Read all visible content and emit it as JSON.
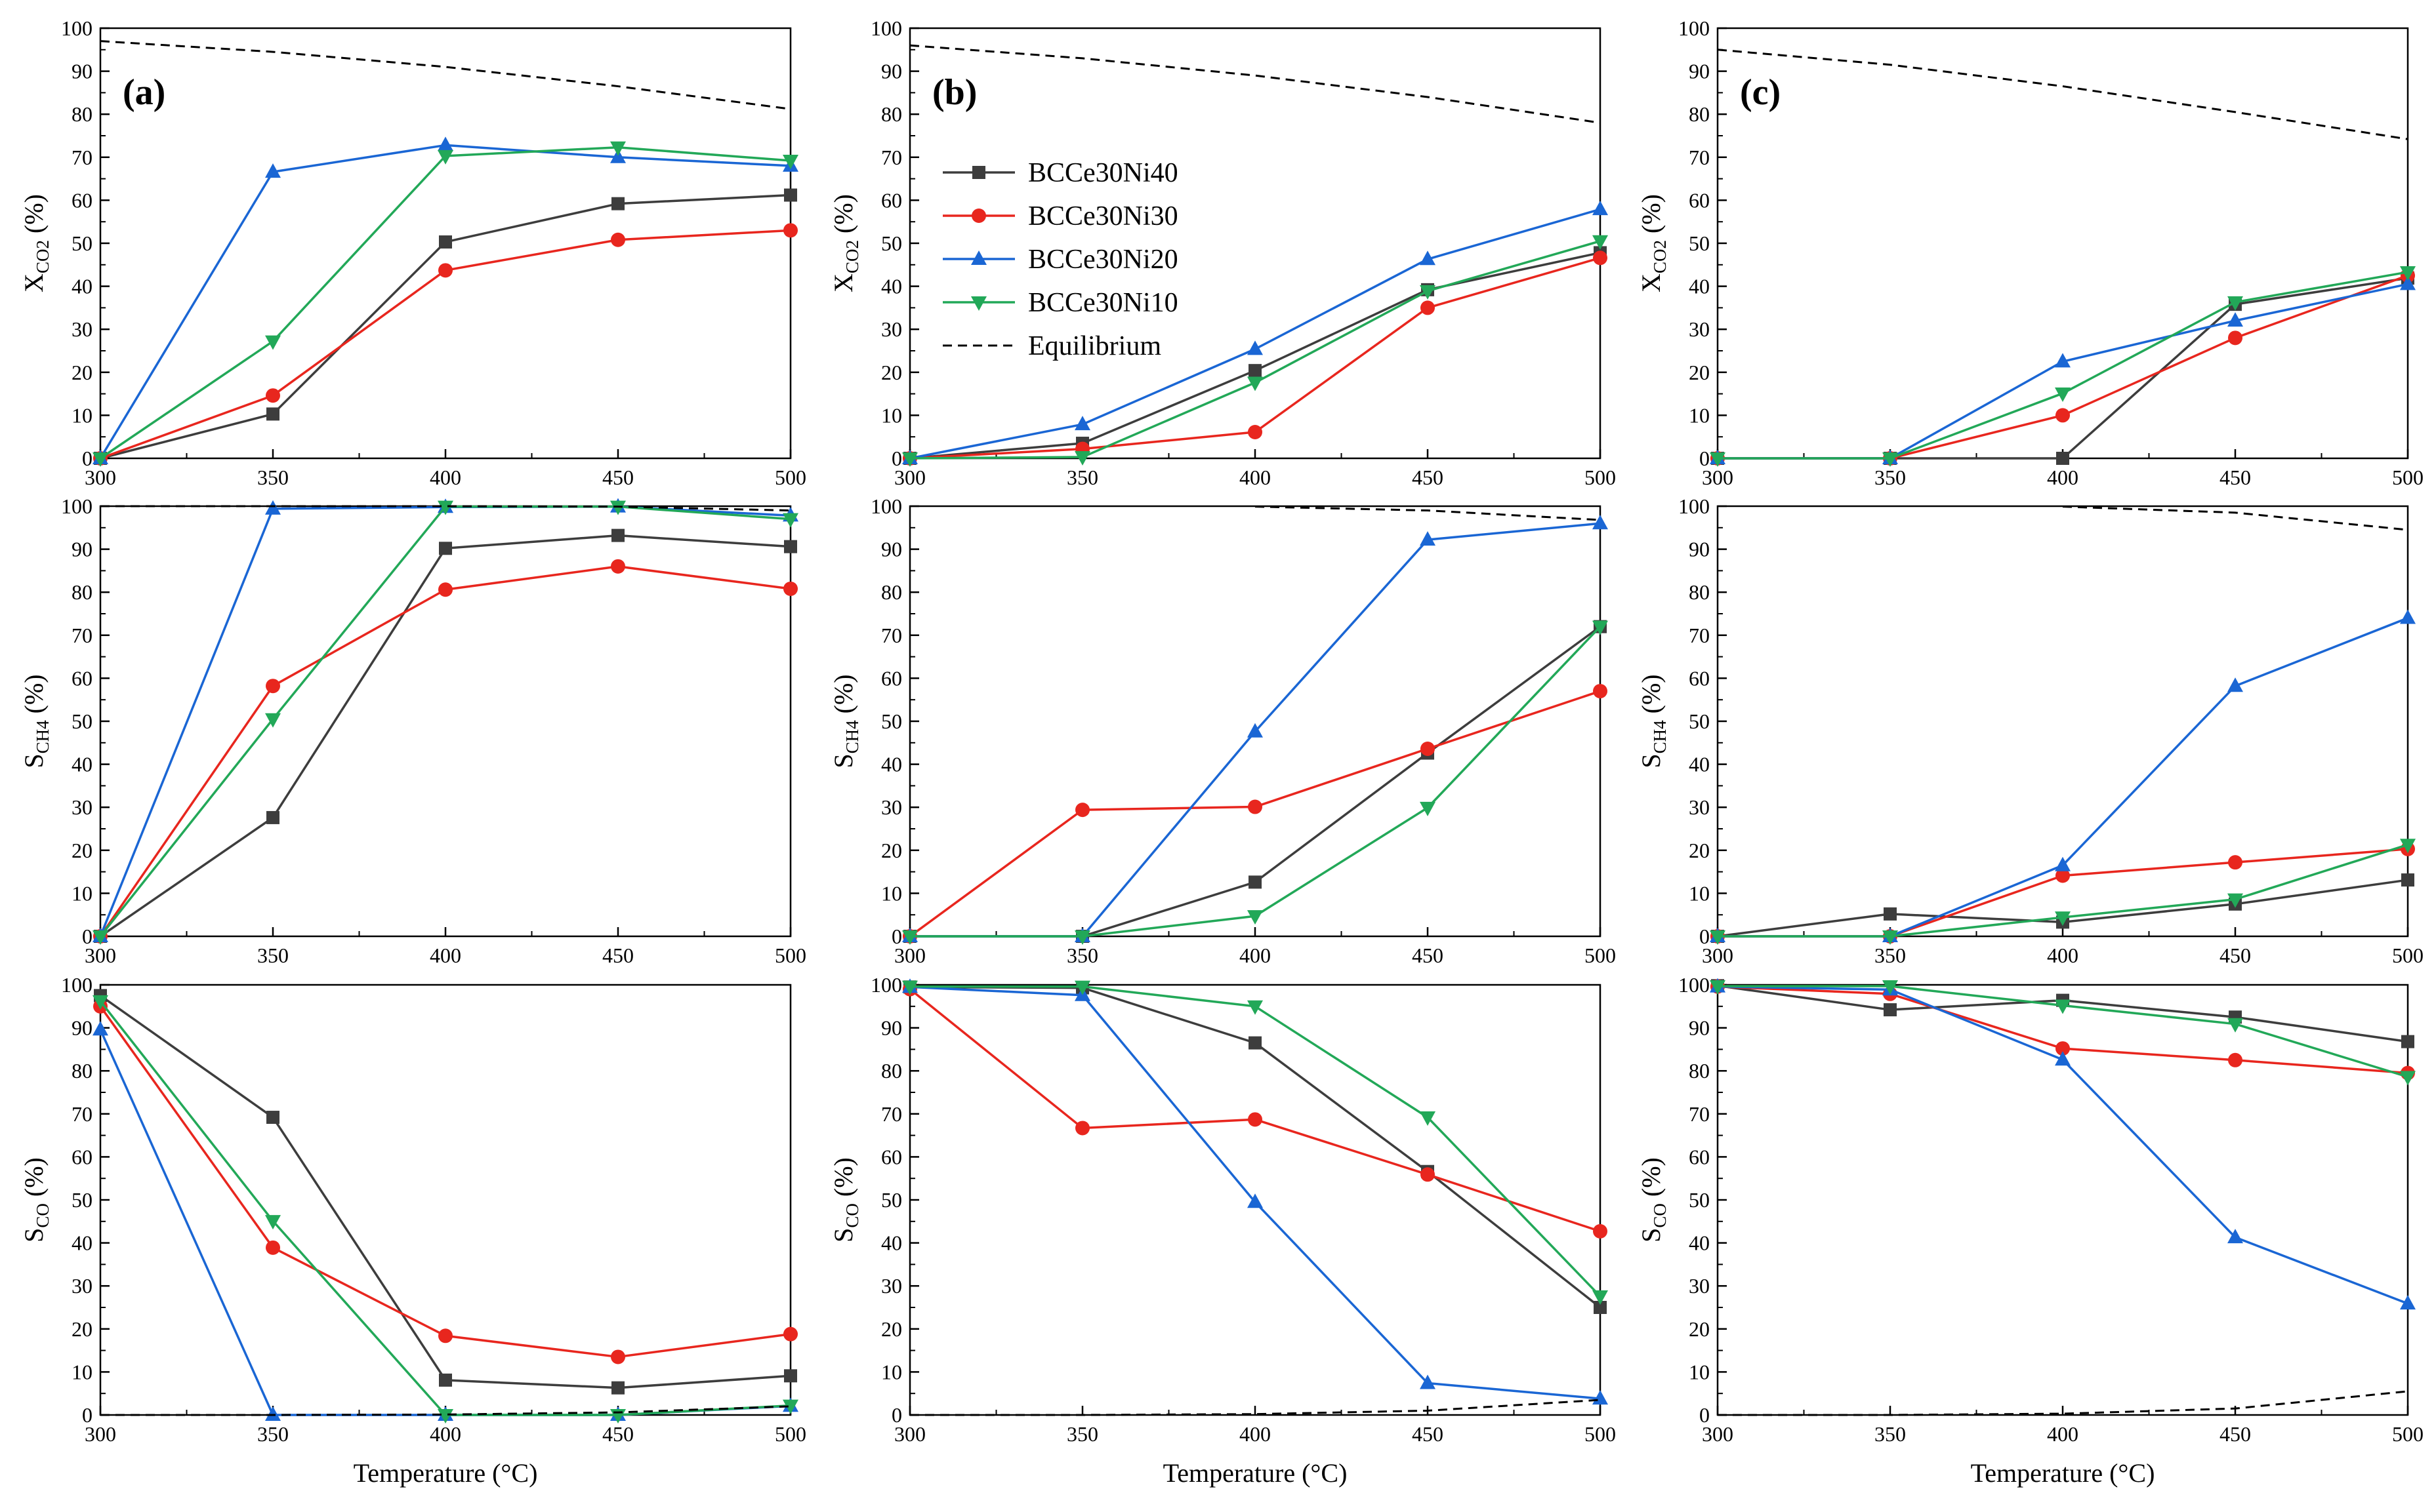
{
  "chart_data": [
    {
      "type": "line",
      "panel": "(a)",
      "ylabel_main": "X",
      "ylabel_sub": "CO2",
      "ylabel_suffix": " (%)",
      "x": [
        300,
        350,
        400,
        450,
        500
      ],
      "xlim": [
        300,
        500
      ],
      "ylim": [
        0,
        100
      ],
      "show_xlabel": false,
      "show_legend": false,
      "series": [
        {
          "name": "BCCe30Ni40",
          "values": [
            0,
            10.3,
            50.3,
            59.2,
            61.2
          ]
        },
        {
          "name": "BCCe30Ni30",
          "values": [
            0,
            14.6,
            43.7,
            50.8,
            53.0
          ]
        },
        {
          "name": "BCCe30Ni20",
          "values": [
            0,
            66.6,
            72.8,
            70.0,
            68.0
          ]
        },
        {
          "name": "BCCe30Ni10",
          "values": [
            0,
            27.2,
            70.3,
            72.3,
            69.2
          ]
        },
        {
          "name": "Equilibrium",
          "x": [
            300,
            350,
            400,
            450,
            500
          ],
          "values": [
            97.0,
            94.5,
            91.0,
            86.5,
            81.2
          ]
        }
      ]
    },
    {
      "type": "line",
      "panel": "(b)",
      "ylabel_main": "X",
      "ylabel_sub": "CO2",
      "ylabel_suffix": " (%)",
      "x": [
        300,
        350,
        400,
        450,
        500
      ],
      "xlim": [
        300,
        500
      ],
      "ylim": [
        0,
        100
      ],
      "show_xlabel": false,
      "show_legend": true,
      "series": [
        {
          "name": "BCCe30Ni40",
          "values": [
            0,
            3.5,
            20.4,
            39.2,
            47.8
          ]
        },
        {
          "name": "BCCe30Ni30",
          "values": [
            0,
            2.2,
            6.1,
            35.0,
            46.6
          ]
        },
        {
          "name": "BCCe30Ni20",
          "values": [
            0,
            7.9,
            25.4,
            46.3,
            57.9
          ]
        },
        {
          "name": "BCCe30Ni10",
          "values": [
            0,
            0.3,
            17.6,
            38.9,
            50.5
          ]
        },
        {
          "name": "Equilibrium",
          "x": [
            300,
            350,
            400,
            450,
            500
          ],
          "values": [
            96.0,
            93.0,
            89.0,
            84.0,
            78.0
          ]
        }
      ]
    },
    {
      "type": "line",
      "panel": "(c)",
      "ylabel_main": "X",
      "ylabel_sub": "CO2",
      "ylabel_suffix": " (%)",
      "x": [
        300,
        350,
        400,
        450,
        500
      ],
      "xlim": [
        300,
        500
      ],
      "ylim": [
        0,
        100
      ],
      "show_xlabel": false,
      "show_legend": false,
      "series": [
        {
          "name": "BCCe30Ni40",
          "values": [
            0,
            0,
            0,
            35.8,
            41.9
          ]
        },
        {
          "name": "BCCe30Ni30",
          "values": [
            0,
            0,
            10.0,
            28.0,
            42.5
          ]
        },
        {
          "name": "BCCe30Ni20",
          "values": [
            0,
            0,
            22.5,
            32.0,
            40.5
          ]
        },
        {
          "name": "BCCe30Ni10",
          "values": [
            0,
            0,
            15.1,
            36.3,
            43.3
          ]
        },
        {
          "name": "Equilibrium",
          "x": [
            300,
            350,
            400,
            450,
            500
          ],
          "values": [
            95.0,
            91.5,
            86.5,
            80.5,
            74.2
          ]
        }
      ]
    },
    {
      "type": "line",
      "ylabel_main": "S",
      "ylabel_sub": "CH4",
      "ylabel_suffix": " (%)",
      "x": [
        300,
        350,
        400,
        450,
        500
      ],
      "xlim": [
        300,
        500
      ],
      "ylim": [
        0,
        100
      ],
      "show_xlabel": false,
      "show_legend": false,
      "series": [
        {
          "name": "BCCe30Ni40",
          "values": [
            0,
            27.6,
            90.2,
            93.2,
            90.6
          ]
        },
        {
          "name": "BCCe30Ni30",
          "values": [
            0,
            58.2,
            80.6,
            86.0,
            80.8
          ]
        },
        {
          "name": "BCCe30Ni20",
          "values": [
            0,
            99.4,
            99.8,
            99.9,
            97.8
          ]
        },
        {
          "name": "BCCe30Ni10",
          "values": [
            0,
            50.5,
            99.9,
            99.9,
            97.0
          ]
        },
        {
          "name": "Equilibrium",
          "x": [
            300,
            350,
            400,
            450,
            500
          ],
          "values": [
            100,
            100,
            100,
            99.9,
            99.0
          ]
        }
      ]
    },
    {
      "type": "line",
      "ylabel_main": "S",
      "ylabel_sub": "CH4",
      "ylabel_suffix": " (%)",
      "x": [
        300,
        350,
        400,
        450,
        500
      ],
      "xlim": [
        300,
        500
      ],
      "ylim": [
        0,
        100
      ],
      "show_xlabel": false,
      "show_legend": false,
      "series": [
        {
          "name": "BCCe30Ni40",
          "values": [
            0,
            0,
            12.6,
            42.6,
            72.0
          ]
        },
        {
          "name": "BCCe30Ni30",
          "values": [
            0,
            29.4,
            30.1,
            43.6,
            57.0
          ]
        },
        {
          "name": "BCCe30Ni20",
          "values": [
            0,
            0,
            47.6,
            92.2,
            96.0
          ]
        },
        {
          "name": "BCCe30Ni10",
          "values": [
            0,
            0,
            4.7,
            29.9,
            72.0
          ]
        },
        {
          "name": "Equilibrium",
          "x": [
            400,
            450,
            500
          ],
          "values": [
            99.9,
            99.0,
            96.8
          ]
        }
      ]
    },
    {
      "type": "line",
      "ylabel_main": "S",
      "ylabel_sub": "CH4",
      "ylabel_suffix": " (%)",
      "x": [
        300,
        350,
        400,
        450,
        500
      ],
      "xlim": [
        300,
        500
      ],
      "ylim": [
        0,
        100
      ],
      "show_xlabel": false,
      "show_legend": false,
      "series": [
        {
          "name": "BCCe30Ni40",
          "values": [
            0,
            5.2,
            3.3,
            7.5,
            13.1
          ]
        },
        {
          "name": "BCCe30Ni30",
          "values": [
            0,
            0,
            14.1,
            17.2,
            20.3
          ]
        },
        {
          "name": "BCCe30Ni20",
          "values": [
            0,
            0,
            16.5,
            58.2,
            74.0
          ]
        },
        {
          "name": "BCCe30Ni10",
          "values": [
            0,
            0,
            4.4,
            8.6,
            21.3
          ]
        },
        {
          "name": "Equilibrium",
          "x": [
            400,
            450,
            500
          ],
          "values": [
            99.9,
            98.5,
            94.5
          ]
        }
      ]
    },
    {
      "type": "line",
      "ylabel_main": "S",
      "ylabel_sub": "CO",
      "ylabel_suffix": " (%)",
      "x": [
        300,
        350,
        400,
        450,
        500
      ],
      "xlim": [
        300,
        500
      ],
      "ylim": [
        0,
        100
      ],
      "show_xlabel": true,
      "show_legend": false,
      "series": [
        {
          "name": "BCCe30Ni40",
          "values": [
            97.5,
            69.2,
            8.1,
            6.3,
            9.1
          ]
        },
        {
          "name": "BCCe30Ni30",
          "values": [
            95.0,
            38.9,
            18.4,
            13.5,
            18.8
          ]
        },
        {
          "name": "BCCe30Ni20",
          "values": [
            89.6,
            0,
            0,
            0,
            2.1
          ]
        },
        {
          "name": "BCCe30Ni10",
          "values": [
            96.2,
            45.1,
            0,
            0,
            2.2
          ]
        },
        {
          "name": "Equilibrium",
          "x": [
            300,
            350,
            400,
            450,
            500
          ],
          "values": [
            0,
            0,
            0.1,
            0.6,
            2.0
          ]
        }
      ]
    },
    {
      "type": "line",
      "ylabel_main": "S",
      "ylabel_sub": "CO",
      "ylabel_suffix": " (%)",
      "x": [
        300,
        350,
        400,
        450,
        500
      ],
      "xlim": [
        300,
        500
      ],
      "ylim": [
        0,
        100
      ],
      "show_xlabel": true,
      "show_legend": false,
      "series": [
        {
          "name": "BCCe30Ni40",
          "values": [
            99.5,
            99.3,
            86.5,
            56.6,
            25.0
          ]
        },
        {
          "name": "BCCe30Ni30",
          "values": [
            99.0,
            66.7,
            68.7,
            55.9,
            42.7
          ]
        },
        {
          "name": "BCCe30Ni20",
          "values": [
            99.5,
            97.6,
            49.5,
            7.4,
            3.8
          ]
        },
        {
          "name": "BCCe30Ni10",
          "values": [
            99.6,
            99.6,
            95.0,
            69.2,
            27.6
          ]
        },
        {
          "name": "Equilibrium",
          "x": [
            300,
            350,
            400,
            450,
            500
          ],
          "values": [
            0,
            0,
            0.2,
            1.0,
            3.5
          ]
        }
      ]
    },
    {
      "type": "line",
      "ylabel_main": "S",
      "ylabel_sub": "CO",
      "ylabel_suffix": " (%)",
      "x": [
        300,
        350,
        400,
        450,
        500
      ],
      "xlim": [
        300,
        500
      ],
      "ylim": [
        0,
        100
      ],
      "show_xlabel": true,
      "show_legend": false,
      "series": [
        {
          "name": "BCCe30Ni40",
          "values": [
            99.8,
            94.2,
            96.4,
            92.5,
            86.8
          ]
        },
        {
          "name": "BCCe30Ni30",
          "values": [
            99.6,
            97.9,
            85.2,
            82.5,
            79.5
          ]
        },
        {
          "name": "BCCe30Ni20",
          "values": [
            99.6,
            98.9,
            82.6,
            41.3,
            25.9
          ]
        },
        {
          "name": "BCCe30Ni10",
          "values": [
            99.7,
            99.7,
            95.2,
            90.9,
            78.6
          ]
        },
        {
          "name": "Equilibrium",
          "x": [
            300,
            350,
            400,
            450,
            500
          ],
          "values": [
            0,
            0,
            0.3,
            1.5,
            5.5
          ]
        }
      ]
    }
  ],
  "axes": {
    "xlabel": "Temperature (°C)",
    "yticks": [
      "0",
      "10",
      "20",
      "30",
      "40",
      "50",
      "60",
      "70",
      "80",
      "90",
      "100"
    ],
    "xticks": [
      "300",
      "350",
      "400",
      "450",
      "500"
    ]
  },
  "legend": {
    "entries": [
      "BCCe30Ni40",
      "BCCe30Ni30",
      "BCCe30Ni20",
      "BCCe30Ni10",
      "Equilibrium"
    ]
  },
  "styles": {
    "BCCe30Ni40": {
      "color": "#3d3d3d",
      "marker": "square"
    },
    "BCCe30Ni30": {
      "color": "#e8261e",
      "marker": "circle"
    },
    "BCCe30Ni20": {
      "color": "#1a66d4",
      "marker": "triangle-up"
    },
    "BCCe30Ni10": {
      "color": "#22a858",
      "marker": "triangle-down"
    },
    "Equilibrium": {
      "color": "#000000",
      "marker": "none",
      "dash": true
    }
  }
}
